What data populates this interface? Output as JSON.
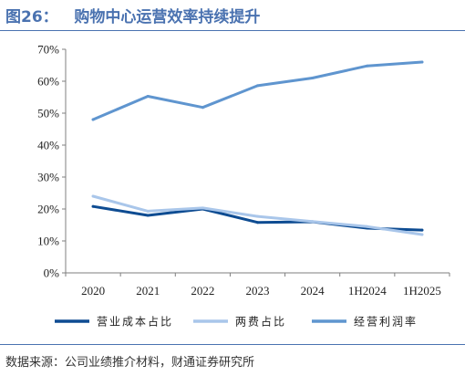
{
  "figure": {
    "title": "图26：   购物中心运营效率持续提升",
    "source": "数据来源：公司业绩推介材料，财通证券研究所"
  },
  "chart_data": {
    "type": "line",
    "categories": [
      "2020",
      "2021",
      "2022",
      "2023",
      "2024",
      "1H2024",
      "1H2025"
    ],
    "ylim": [
      0,
      70
    ],
    "yticks": [
      "0%",
      "10%",
      "20%",
      "30%",
      "40%",
      "50%",
      "60%",
      "70%"
    ],
    "legend_position": "bottom",
    "grid": false,
    "series": [
      {
        "name": "营业成本占比",
        "color": "#0e4c92",
        "values": [
          20.8,
          18.0,
          20.0,
          15.8,
          16.0,
          14.0,
          13.4
        ]
      },
      {
        "name": "两费占比",
        "color": "#a9c6ea",
        "values": [
          24.0,
          19.3,
          20.3,
          17.7,
          16.1,
          14.5,
          12.0
        ]
      },
      {
        "name": "经营利润率",
        "color": "#5f95cf",
        "values": [
          48.0,
          55.3,
          51.8,
          58.6,
          61.0,
          64.8,
          66.0
        ]
      }
    ]
  }
}
